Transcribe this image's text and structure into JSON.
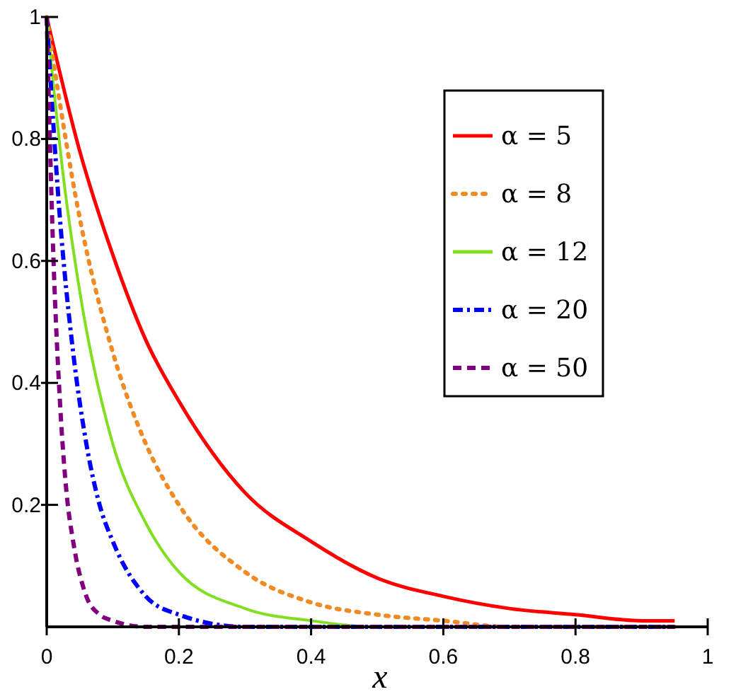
{
  "chart_data": {
    "type": "line",
    "xlabel": "x",
    "xlim": [
      0,
      1
    ],
    "ylim": [
      0,
      1
    ],
    "xticks": [
      0,
      0.2,
      0.4,
      0.6,
      0.8,
      1
    ],
    "yticks": [
      0.2,
      0.4,
      0.6,
      0.8,
      1
    ],
    "legend": "top right",
    "grid": false,
    "series": [
      {
        "name": "α = 5",
        "color": "#ff0000",
        "line_style": "solid",
        "x": [
          0,
          0.05,
          0.1,
          0.15,
          0.2,
          0.3,
          0.4,
          0.5,
          0.6,
          0.7,
          0.8,
          0.9,
          0.95
        ],
        "values": [
          1,
          0.78,
          0.61,
          0.47,
          0.37,
          0.22,
          0.14,
          0.08,
          0.05,
          0.03,
          0.02,
          0.01,
          0.01
        ]
      },
      {
        "name": "α = 8",
        "color": "#f08a24",
        "line_style": "dotted",
        "x": [
          0,
          0.05,
          0.1,
          0.15,
          0.2,
          0.3,
          0.4,
          0.5,
          0.6,
          0.7,
          0.8,
          0.95
        ],
        "values": [
          1,
          0.67,
          0.45,
          0.3,
          0.2,
          0.09,
          0.04,
          0.02,
          0.01,
          0,
          0,
          0
        ]
      },
      {
        "name": "α = 12",
        "color": "#80e020",
        "line_style": "solid",
        "x": [
          0,
          0.025,
          0.05,
          0.1,
          0.15,
          0.2,
          0.3,
          0.4,
          0.5,
          0.7,
          0.95
        ],
        "values": [
          1,
          0.74,
          0.55,
          0.3,
          0.17,
          0.09,
          0.03,
          0.01,
          0,
          0,
          0
        ]
      },
      {
        "name": "α = 20",
        "color": "#0000ff",
        "line_style": "dashdot",
        "x": [
          0,
          0.02,
          0.04,
          0.06,
          0.08,
          0.1,
          0.15,
          0.2,
          0.3,
          0.95
        ],
        "values": [
          1,
          0.67,
          0.45,
          0.3,
          0.2,
          0.14,
          0.05,
          0.02,
          0,
          0
        ]
      },
      {
        "name": "α = 50",
        "color": "#800080",
        "line_style": "dashed",
        "x": [
          0,
          0.01,
          0.02,
          0.03,
          0.04,
          0.06,
          0.08,
          0.1,
          0.15,
          0.95
        ],
        "values": [
          1,
          0.61,
          0.37,
          0.22,
          0.14,
          0.05,
          0.02,
          0.01,
          0,
          0
        ]
      }
    ]
  }
}
